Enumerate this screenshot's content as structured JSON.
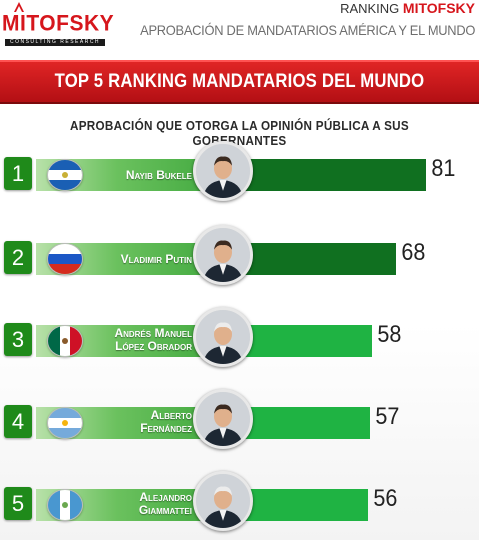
{
  "header": {
    "logo_text": "MITOFSKY",
    "logo_sub": "CONSULTING RESEARCH",
    "ranking_prefix": "RANKING",
    "ranking_brand": "MITOFSKY",
    "subtitle": "APROBACIÓN DE MANDATARIOS AMÉRICA Y EL MUNDO"
  },
  "banner": {
    "title": "TOP 5 RANKING MANDATARIOS DEL MUNDO"
  },
  "caption": "APROBACIÓN QUE OTORGA LA OPINIÓN PÚBLICA A SUS GOBERNANTES",
  "colors": {
    "red": "#d6161c",
    "green_dark": "#107020",
    "green_bright": "#1fb343"
  },
  "chart_data": {
    "type": "bar",
    "title": "TOP 5 RANKING MANDATARIOS DEL MUNDO",
    "subtitle": "APROBACIÓN QUE OTORGA LA OPINIÓN PÚBLICA A SUS GOBERNANTES",
    "orientation": "horizontal",
    "categories": [
      "Nayib Bukele",
      "Vladimir Putin",
      "Andrés Manuel López Obrador",
      "Alberto Fernández",
      "Alejandro Giammattei"
    ],
    "values": [
      81,
      68,
      58,
      57,
      56
    ],
    "ranks": [
      "1",
      "2",
      "3",
      "4",
      "5"
    ],
    "labels": [
      "81",
      "68",
      "58",
      "57",
      "56"
    ],
    "name_lines": [
      [
        "Nayib Bukele"
      ],
      [
        "Vladimir Putin"
      ],
      [
        "Andrés Manuel",
        "López Obrador"
      ],
      [
        "Alberto",
        "Fernández"
      ],
      [
        "Alejandro",
        "Giammattei"
      ]
    ],
    "flags": [
      "el-salvador-flag",
      "russia-flag",
      "mexico-flag",
      "argentina-flag",
      "guatemala-flag"
    ],
    "bar_colors": [
      "#107020",
      "#107020",
      "#1fb343",
      "#1fb343",
      "#1fb343"
    ]
  }
}
